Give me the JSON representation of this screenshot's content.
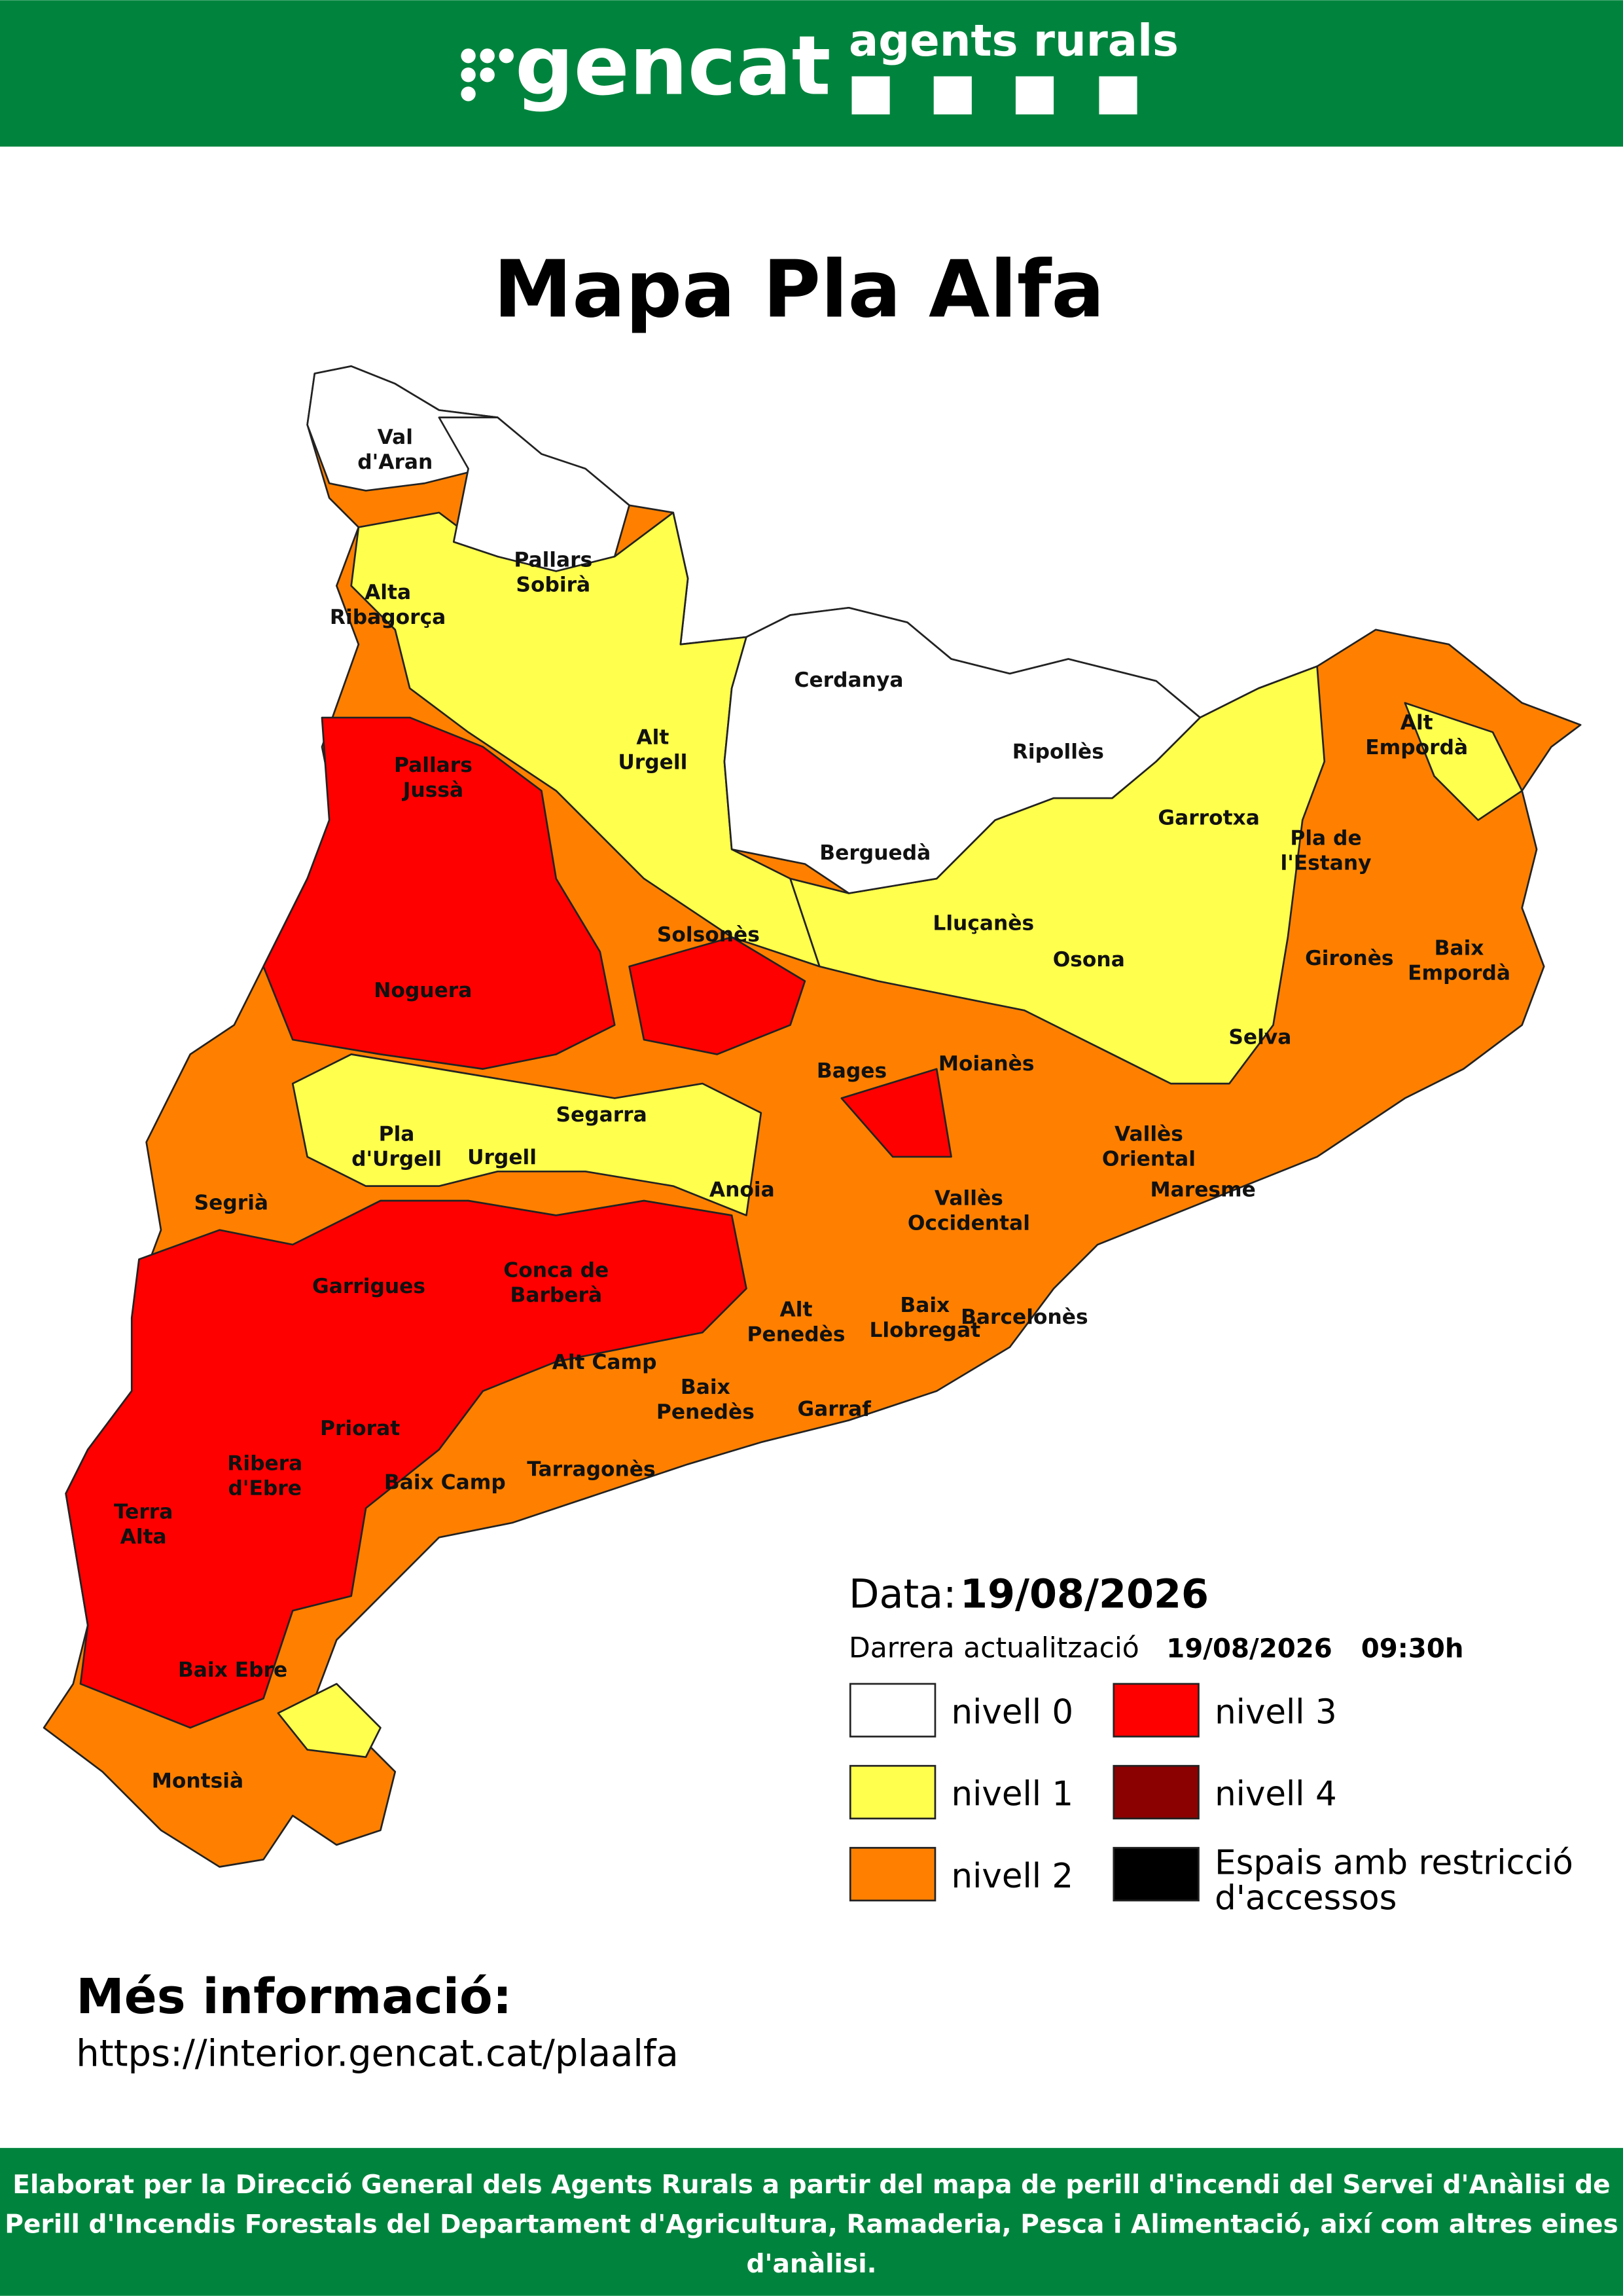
{
  "header": {
    "logo": "gencat",
    "brand": "agents rurals"
  },
  "title": "Mapa Pla Alfa",
  "map": {
    "labels": [
      [
        "Val",
        "d'Aran"
      ],
      [
        "Pallars",
        "Sobirà"
      ],
      [
        "Alta",
        "Ribagorça"
      ],
      [
        "Cerdanya"
      ],
      [
        "Ripollès"
      ],
      [
        "Alt",
        "Urgell"
      ],
      [
        "Pallars",
        "Jussà"
      ],
      [
        "Alt",
        "Empordà"
      ],
      [
        "Garrotxa"
      ],
      [
        "Pla de",
        "l'Estany"
      ],
      [
        "Berguedà"
      ],
      [
        "Solsonès"
      ],
      [
        "Lluçanès"
      ],
      [
        "Osona"
      ],
      [
        "Gironès"
      ],
      [
        "Baix",
        "Empordà"
      ],
      [
        "Noguera"
      ],
      [
        "Selva"
      ],
      [
        "Moianès"
      ],
      [
        "Bages"
      ],
      [
        "Segarra"
      ],
      [
        "Pla",
        "d'Urgell"
      ],
      [
        "Urgell"
      ],
      [
        "Vallès",
        "Oriental"
      ],
      [
        "Segrià"
      ],
      [
        "Anoia"
      ],
      [
        "Maresme"
      ],
      [
        "Vallès",
        "Occidental"
      ],
      [
        "Garrigues"
      ],
      [
        "Conca de",
        "Barberà"
      ],
      [
        "Alt",
        "Penedès"
      ],
      [
        "Baix",
        "Llobregat"
      ],
      [
        "Barcelonès"
      ],
      [
        "Alt Camp"
      ],
      [
        "Baix",
        "Penedès"
      ],
      [
        "Garraf"
      ],
      [
        "Priorat"
      ],
      [
        "Ribera",
        "d'Ebre"
      ],
      [
        "Tarragonès"
      ],
      [
        "Baix Camp"
      ],
      [
        "Terra",
        "Alta"
      ],
      [
        "Baix Ebre"
      ],
      [
        "Montsià"
      ]
    ]
  },
  "legend": {
    "date_label": "Data:",
    "date": "19/08/2026",
    "update_label": "Darrera actualització",
    "update_date": "19/08/2026",
    "update_time": "09:30h",
    "items": [
      {
        "label": [
          "nivell 0"
        ],
        "color": "#ffffff"
      },
      {
        "label": [
          "nivell 1"
        ],
        "color": "#ffff4d"
      },
      {
        "label": [
          "nivell 2"
        ],
        "color": "#ff8000"
      },
      {
        "label": [
          "nivell 3"
        ],
        "color": "#ff0000"
      },
      {
        "label": [
          "nivell 4"
        ],
        "color": "#8b0000"
      },
      {
        "label": [
          "Espais amb restricció",
          "d'accessos"
        ],
        "color": "#000000"
      }
    ]
  },
  "info": {
    "heading": "Més informació:",
    "url": "https://interior.gencat.cat/plaalfa"
  },
  "footer": [
    "Elaborat per la Direcció General dels Agents Rurals a partir del mapa de perill d'incendi del Servei d'Anàlisi de",
    "Perill d'Incendis Forestals del Departament d'Agricultura, Ramaderia, Pesca i Alimentació, així com altres eines",
    "d'anàlisi."
  ]
}
